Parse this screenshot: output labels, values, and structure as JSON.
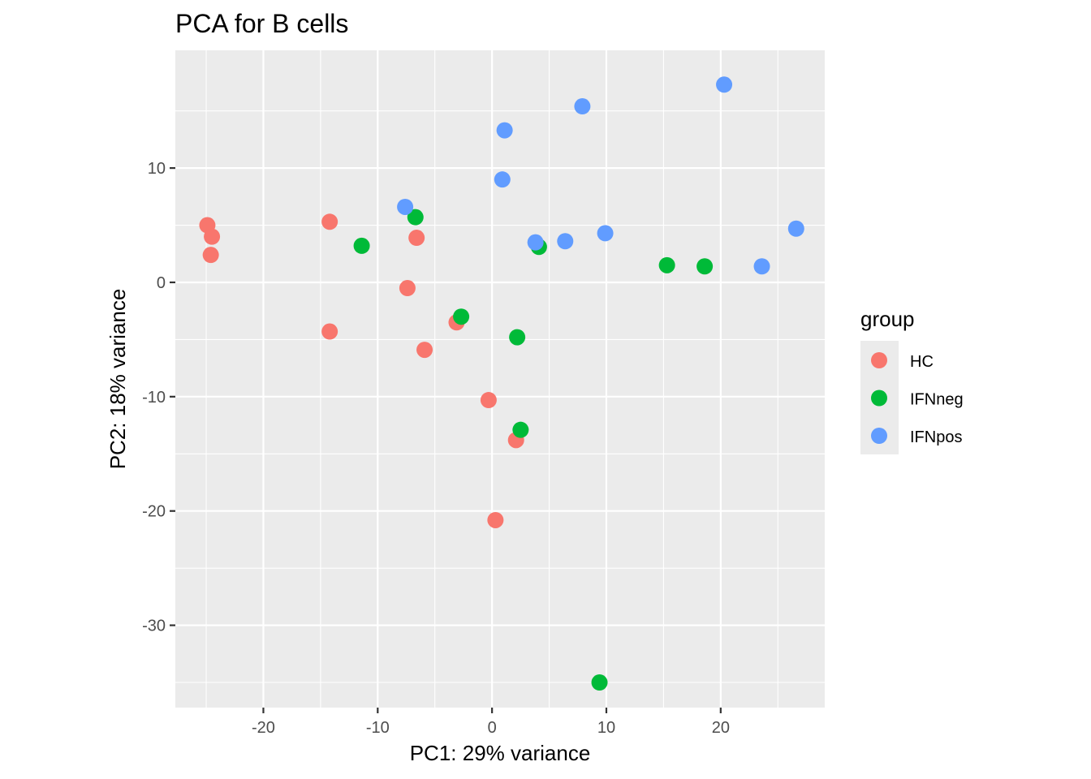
{
  "chart_data": {
    "type": "scatter",
    "title": "PCA for B cells",
    "xlabel": "PC1: 29% variance",
    "ylabel": "PC2: 18% variance",
    "xlim": [
      -27.7,
      29.1
    ],
    "ylim": [
      -37.2,
      20.3
    ],
    "x_ticks": [
      -20,
      -10,
      0,
      10,
      20
    ],
    "x_tick_labels": [
      "-20",
      "-10",
      "0",
      "10",
      "20"
    ],
    "y_ticks": [
      -30,
      -20,
      -10,
      0,
      10
    ],
    "y_tick_labels": [
      "-30",
      "-20",
      "-10",
      "0",
      "10"
    ],
    "grid": true,
    "legend_placement": "right",
    "legend_title": "group",
    "background_color": "#EBEBEB",
    "grid_color": "#FFFFFF",
    "series": [
      {
        "name": "HC",
        "color": "#F8766D",
        "points": [
          [
            -24.9,
            5.0
          ],
          [
            -24.5,
            4.0
          ],
          [
            -24.6,
            2.4
          ],
          [
            -14.2,
            5.3
          ],
          [
            -14.2,
            -4.3
          ],
          [
            -6.6,
            3.9
          ],
          [
            -7.4,
            -0.5
          ],
          [
            -3.1,
            -3.5
          ],
          [
            -5.9,
            -5.9
          ],
          [
            -0.3,
            -10.3
          ],
          [
            2.1,
            -13.8
          ],
          [
            0.3,
            -20.8
          ]
        ]
      },
      {
        "name": "IFNneg",
        "color": "#00BA38",
        "points": [
          [
            -11.4,
            3.2
          ],
          [
            -6.7,
            5.7
          ],
          [
            4.1,
            3.1
          ],
          [
            -2.7,
            -3.0
          ],
          [
            2.2,
            -4.8
          ],
          [
            2.5,
            -12.9
          ],
          [
            15.3,
            1.5
          ],
          [
            18.6,
            1.4
          ],
          [
            9.4,
            -35.0
          ]
        ]
      },
      {
        "name": "IFNpos",
        "color": "#619CFF",
        "points": [
          [
            20.3,
            17.3
          ],
          [
            7.9,
            15.4
          ],
          [
            1.1,
            13.3
          ],
          [
            0.9,
            9.0
          ],
          [
            -7.6,
            6.6
          ],
          [
            3.8,
            3.5
          ],
          [
            6.4,
            3.6
          ],
          [
            9.9,
            4.3
          ],
          [
            26.6,
            4.7
          ],
          [
            23.6,
            1.4
          ]
        ]
      }
    ]
  }
}
